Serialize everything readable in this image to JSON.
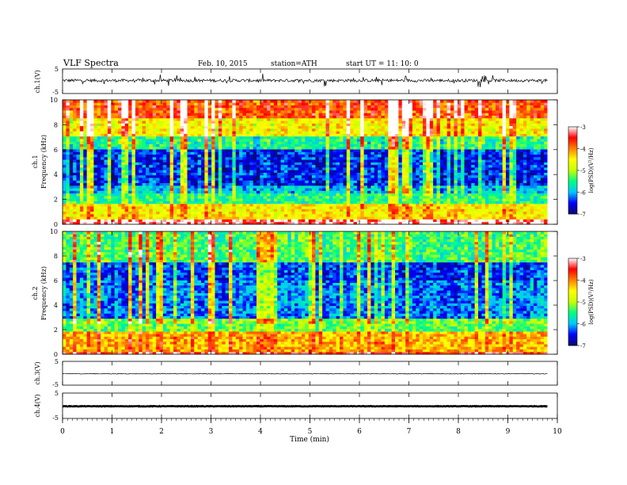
{
  "header": {
    "title": "VLF Spectra",
    "date": "Feb. 10, 2015",
    "station": "station=ATH",
    "start": "start  UT  =   11: 10: 0"
  },
  "chart_data": [
    {
      "type": "line",
      "name": "ch1-waveform",
      "ylabel": "ch.1(V)",
      "ylim": [
        -5,
        5
      ],
      "yticks": [
        "5",
        "-5"
      ],
      "x_range_min": [
        0,
        9.8
      ],
      "baseline_v": 0.3,
      "description_values": {
        "level_v": 0.3,
        "noise_amplitude_v": 1.2
      }
    },
    {
      "type": "heatmap",
      "name": "ch1-spectrogram",
      "ylabel": "ch.1\nFrequency  (kHz)",
      "ylim": [
        0,
        10
      ],
      "yticks": [
        "0",
        "2",
        "4",
        "6",
        "8",
        "10"
      ],
      "x_range_min": [
        0,
        9.8
      ],
      "colorbar": {
        "label": "log(PSD)(V²/Hz)",
        "range": [
          -7,
          -3
        ],
        "ticks": [
          "-3",
          "-4",
          "-5",
          "-6",
          "-7"
        ]
      },
      "profile": [
        {
          "f": [
            0.0,
            0.4
          ],
          "logpsd": -3.3
        },
        {
          "f": [
            0.4,
            1.6
          ],
          "logpsd": -4.6
        },
        {
          "f": [
            1.6,
            2.6
          ],
          "logpsd": -5.6
        },
        {
          "f": [
            2.6,
            3.2
          ],
          "logpsd": -6.2
        },
        {
          "f": [
            3.2,
            6.0
          ],
          "logpsd": -6.7
        },
        {
          "f": [
            6.0,
            7.0
          ],
          "logpsd": -5.8
        },
        {
          "f": [
            7.0,
            8.5
          ],
          "logpsd": -4.8
        },
        {
          "f": [
            8.5,
            10.0
          ],
          "logpsd": -4.0
        }
      ]
    },
    {
      "type": "heatmap",
      "name": "ch2-spectrogram",
      "ylabel": "ch.2\nFrequency  (kHz)",
      "ylim": [
        0,
        10
      ],
      "yticks": [
        "0",
        "2",
        "4",
        "6",
        "8",
        "10"
      ],
      "x_range_min": [
        0,
        9.8
      ],
      "colorbar": {
        "label": "log(PSD)(V²/Hz)",
        "range": [
          -7,
          -3
        ],
        "ticks": [
          "-3",
          "-4",
          "-5",
          "-6",
          "-7"
        ]
      },
      "profile": [
        {
          "f": [
            0.0,
            0.3
          ],
          "logpsd": -3.6
        },
        {
          "f": [
            0.3,
            1.8
          ],
          "logpsd": -4.3
        },
        {
          "f": [
            1.8,
            3.0
          ],
          "logpsd": -5.4
        },
        {
          "f": [
            3.0,
            6.0
          ],
          "logpsd": -6.4
        },
        {
          "f": [
            6.0,
            7.5
          ],
          "logpsd": -6.6
        },
        {
          "f": [
            7.5,
            10.0
          ],
          "logpsd": -5.6
        }
      ]
    },
    {
      "type": "line",
      "name": "ch3-waveform",
      "ylabel": "ch.3(V)",
      "ylim": [
        -5,
        5
      ],
      "yticks": [
        "5",
        "-5"
      ],
      "x_range_min": [
        0,
        9.8
      ],
      "description_values": {
        "level_v": -0.2,
        "noise_amplitude_v": 0.3
      }
    },
    {
      "type": "line",
      "name": "ch4-waveform",
      "ylabel": "ch.4(V)",
      "ylim": [
        -5,
        5
      ],
      "yticks": [
        "5",
        "-5"
      ],
      "x_range_min": [
        0,
        9.8
      ],
      "description_values": {
        "level_v": -0.2,
        "noise_amplitude_v": 0.2
      }
    }
  ],
  "xaxis": {
    "label": "Time  (min)",
    "range": [
      0,
      10
    ],
    "ticks": [
      "0",
      "1",
      "2",
      "3",
      "4",
      "5",
      "6",
      "7",
      "8",
      "9",
      "10"
    ]
  },
  "colors": {
    "psd_scale": [
      "#0a0a6a",
      "#0000ff",
      "#00c8ff",
      "#00ff80",
      "#c8ff00",
      "#ffff00",
      "#ff8000",
      "#ff0000",
      "#ffffff"
    ]
  }
}
